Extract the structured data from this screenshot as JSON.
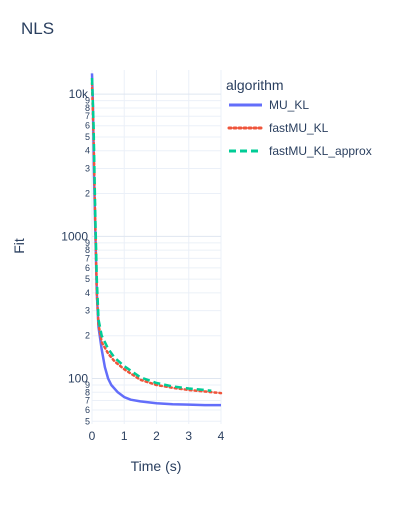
{
  "chart_data": {
    "type": "line",
    "title": "NLS",
    "xlabel": "Time (s)",
    "ylabel": "Fit",
    "xlim": [
      0,
      4
    ],
    "ylim_log10": [
      1.68,
      4.17
    ],
    "yscale": "log",
    "grid": true,
    "x_ticks": [
      0,
      1,
      2,
      3,
      4
    ],
    "y_major_ticks": [
      {
        "value": 100,
        "label": "100"
      },
      {
        "value": 1000,
        "label": "1000"
      },
      {
        "value": 10000,
        "label": "10k"
      }
    ],
    "y_minor_ticks": [
      {
        "value": 50,
        "label": "5"
      },
      {
        "value": 60,
        "label": "6"
      },
      {
        "value": 70,
        "label": "7"
      },
      {
        "value": 80,
        "label": "8"
      },
      {
        "value": 90,
        "label": "9"
      },
      {
        "value": 200,
        "label": "2"
      },
      {
        "value": 300,
        "label": "3"
      },
      {
        "value": 400,
        "label": "4"
      },
      {
        "value": 500,
        "label": "5"
      },
      {
        "value": 600,
        "label": "6"
      },
      {
        "value": 700,
        "label": "7"
      },
      {
        "value": 800,
        "label": "8"
      },
      {
        "value": 900,
        "label": "9"
      },
      {
        "value": 2000,
        "label": "2"
      },
      {
        "value": 3000,
        "label": "3"
      },
      {
        "value": 4000,
        "label": "4"
      },
      {
        "value": 5000,
        "label": "5"
      },
      {
        "value": 6000,
        "label": "6"
      },
      {
        "value": 7000,
        "label": "7"
      },
      {
        "value": 8000,
        "label": "8"
      },
      {
        "value": 9000,
        "label": "9"
      }
    ],
    "legend": {
      "title": "algorithm",
      "placement": "top-right"
    },
    "series": [
      {
        "name": "MU_KL",
        "color": "#636efa",
        "dash": "solid",
        "x": [
          0.0,
          0.03,
          0.06,
          0.1,
          0.15,
          0.2,
          0.3,
          0.4,
          0.5,
          0.6,
          0.8,
          1.0,
          1.2,
          1.5,
          2.0,
          2.5,
          3.0,
          3.5,
          4.0
        ],
        "y": [
          14000,
          8000,
          3000,
          1200,
          400,
          230,
          160,
          120,
          100,
          90,
          80,
          74,
          71,
          69,
          67,
          66,
          65.5,
          65,
          65
        ]
      },
      {
        "name": "fastMU_KL",
        "color": "#ef553b",
        "dash": "dot",
        "x": [
          0.0,
          0.05,
          0.1,
          0.15,
          0.2,
          0.3,
          0.5,
          0.7,
          1.0,
          1.5,
          2.0,
          2.5,
          3.0,
          3.5,
          4.0
        ],
        "y": [
          12000,
          5000,
          1300,
          400,
          240,
          180,
          150,
          132,
          116,
          98,
          90,
          86,
          83,
          81,
          79
        ]
      },
      {
        "name": "fastMU_KL_approx",
        "color": "#00cc96",
        "dash": "dash",
        "x": [
          0.0,
          0.05,
          0.1,
          0.15,
          0.2,
          0.3,
          0.5,
          0.7,
          1.0,
          1.5,
          2.0,
          2.5,
          3.0,
          3.5,
          3.7
        ],
        "y": [
          13000,
          6000,
          1500,
          500,
          260,
          200,
          162,
          140,
          122,
          102,
          93,
          88,
          85,
          83,
          82
        ]
      }
    ]
  }
}
